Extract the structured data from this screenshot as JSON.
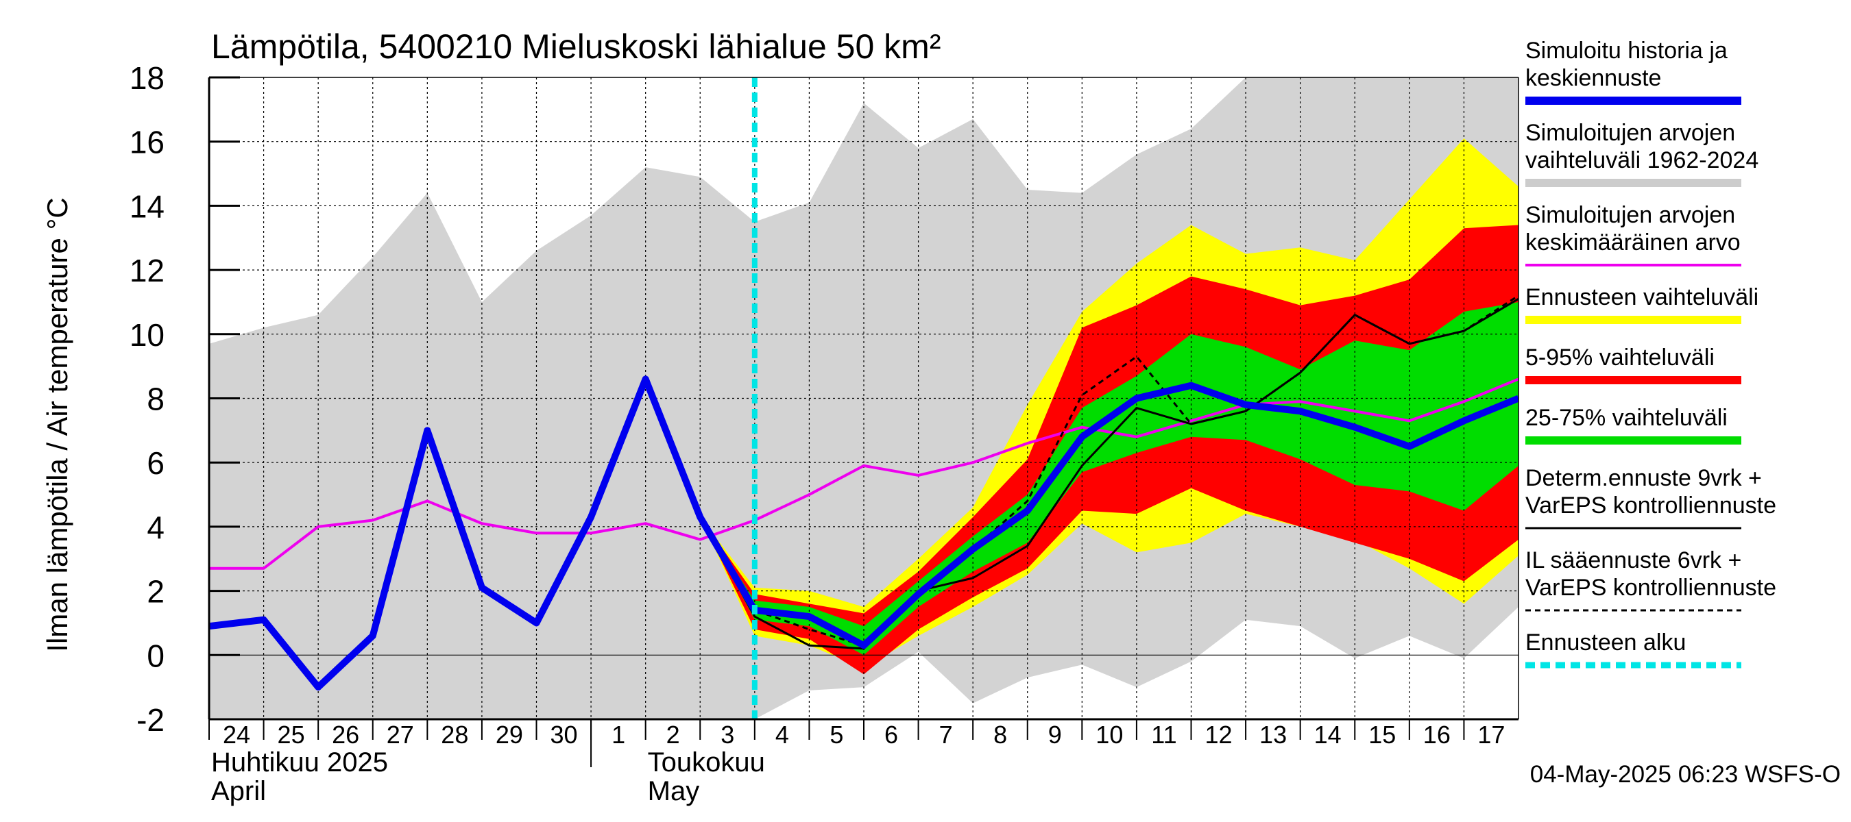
{
  "chart_data": {
    "type": "area",
    "title": "Lämpötila, 5400210 Mieluskoski lähialue 50 km²",
    "ylabel": "Ilman lämpötila / Air temperature   °C",
    "ylim": [
      -2,
      18
    ],
    "yticks": [
      -2,
      0,
      2,
      4,
      6,
      8,
      10,
      12,
      14,
      16,
      18
    ],
    "xlim": [
      0,
      24
    ],
    "x_tick_labels": [
      "24",
      "25",
      "26",
      "27",
      "28",
      "29",
      "30",
      "1",
      "2",
      "3",
      "4",
      "5",
      "6",
      "7",
      "8",
      "9",
      "10",
      "11",
      "12",
      "13",
      "14",
      "15",
      "16",
      "17"
    ],
    "x_tick_positions": [
      0,
      1,
      2,
      3,
      4,
      5,
      6,
      7,
      8,
      9,
      10,
      11,
      12,
      13,
      14,
      15,
      16,
      17,
      18,
      19,
      20,
      21,
      22,
      23
    ],
    "month_labels": [
      {
        "line1": "Huhtikuu  2025",
        "line2": "April",
        "x": 0
      },
      {
        "line1": "Toukokuu",
        "line2": "May",
        "x": 8
      }
    ],
    "month_divider_x": 7,
    "grid": true,
    "forecast_start_x": 10,
    "legend_position": "right",
    "legend": [
      {
        "label": "Simuloitu historia ja keskiennuste",
        "lines": [
          "Simuloitu historia ja",
          "keskiennuste"
        ],
        "color": "#0000ee",
        "style": "thick"
      },
      {
        "label": "Simuloitujen arvojen vaihteluväli 1962-2024",
        "lines": [
          "Simuloitujen arvojen",
          "vaihteluväli 1962-2024"
        ],
        "color": "#cccccc",
        "style": "thick"
      },
      {
        "label": "Simuloitujen arvojen keskimääräinen arvo",
        "lines": [
          "Simuloitujen arvojen",
          "keskimääräinen arvo"
        ],
        "color": "#ee00ee",
        "style": "medium"
      },
      {
        "label": "Ennusteen vaihteluväli",
        "lines": [
          "Ennusteen vaihteluväli"
        ],
        "color": "#ffff00",
        "style": "thick"
      },
      {
        "label": "5-95% vaihteluväli",
        "lines": [
          "5-95% vaihteluväli"
        ],
        "color": "#ff0000",
        "style": "thick"
      },
      {
        "label": "25-75% vaihteluväli",
        "lines": [
          "25-75% vaihteluväli"
        ],
        "color": "#00dd00",
        "style": "thick"
      },
      {
        "label": "Determ.ennuste 9vrk + VarEPS kontrolliennuste",
        "lines": [
          "Determ.ennuste 9vrk +",
          "VarEPS kontrolliennuste"
        ],
        "color": "#000000",
        "style": "thin"
      },
      {
        "label": "IL sääennuste 6vrk + VarEPS kontrolliennuste",
        "lines": [
          "IL sääennuste 6vrk  +",
          "  VarEPS kontrolliennuste"
        ],
        "color": "#000000",
        "style": "dashed"
      },
      {
        "label": "Ennusteen alku",
        "lines": [
          "Ennusteen alku"
        ],
        "color": "#00e5e5",
        "style": "dotted"
      }
    ],
    "series": [
      {
        "name": "Simuloitujen arvojen vaihteluväli 1962-2024",
        "kind": "band",
        "color": "#d3d3d3",
        "x": [
          0,
          1,
          2,
          3,
          4,
          5,
          6,
          7,
          8,
          9,
          10,
          11,
          12,
          13,
          14,
          15,
          16,
          17,
          18,
          19,
          20,
          21,
          22,
          23,
          24
        ],
        "upper": [
          9.7,
          10.2,
          10.6,
          12.4,
          14.4,
          11.0,
          12.6,
          13.7,
          15.2,
          14.9,
          13.5,
          14.1,
          17.2,
          15.8,
          16.7,
          14.5,
          14.4,
          15.6,
          16.4,
          18.0,
          18.0,
          18.0,
          18.0,
          18.0,
          18.0
        ],
        "lower": [
          -2.0,
          -2.0,
          -2.0,
          -2.0,
          -2.0,
          -2.0,
          -2.0,
          -2.0,
          -2.0,
          -2.0,
          -2.0,
          -1.1,
          -1.0,
          0.1,
          -1.5,
          -0.7,
          -0.3,
          -1.0,
          -0.2,
          1.1,
          0.9,
          -0.1,
          0.6,
          -0.1,
          1.5
        ]
      },
      {
        "name": "Ennusteen vaihteluväli",
        "kind": "band",
        "color": "#ffff00",
        "x": [
          9,
          10,
          11,
          12,
          13,
          14,
          15,
          16,
          17,
          18,
          19,
          20,
          21,
          22,
          23,
          24
        ],
        "upper": [
          4.3,
          2.1,
          2.0,
          1.5,
          3.0,
          4.6,
          7.8,
          10.7,
          12.2,
          13.4,
          12.5,
          12.7,
          12.3,
          14.2,
          16.1,
          14.6
        ],
        "lower": [
          4.3,
          0.6,
          0.3,
          -0.4,
          0.6,
          1.5,
          2.5,
          4.1,
          3.2,
          3.5,
          4.4,
          4.0,
          3.6,
          2.7,
          1.6,
          3.1
        ]
      },
      {
        "name": "5-95% vaihteluväli",
        "kind": "band",
        "color": "#ff0000",
        "x": [
          9,
          10,
          11,
          12,
          13,
          14,
          15,
          16,
          17,
          18,
          19,
          20,
          21,
          22,
          23,
          24
        ],
        "upper": [
          4.3,
          1.9,
          1.6,
          1.3,
          2.6,
          4.3,
          6.1,
          10.2,
          10.9,
          11.8,
          11.4,
          10.9,
          11.2,
          11.7,
          13.3,
          13.4
        ],
        "lower": [
          4.3,
          0.8,
          0.5,
          -0.6,
          0.8,
          1.8,
          2.7,
          4.5,
          4.4,
          5.2,
          4.5,
          4.0,
          3.5,
          3.0,
          2.3,
          3.6
        ]
      },
      {
        "name": "25-75% vaihteluväli",
        "kind": "band",
        "color": "#00dd00",
        "x": [
          9,
          10,
          11,
          12,
          13,
          14,
          15,
          16,
          17,
          18,
          19,
          20,
          21,
          22,
          23,
          24
        ],
        "upper": [
          4.3,
          1.7,
          1.5,
          0.9,
          2.3,
          3.7,
          5.0,
          7.7,
          8.7,
          10.0,
          9.6,
          8.9,
          9.8,
          9.5,
          10.7,
          11.0
        ],
        "lower": [
          4.3,
          1.1,
          0.9,
          0.0,
          1.5,
          2.6,
          3.5,
          5.7,
          6.3,
          6.8,
          6.7,
          6.1,
          5.3,
          5.1,
          4.5,
          5.9
        ]
      },
      {
        "name": "Simuloitujen arvojen keskimääräinen arvo",
        "kind": "line",
        "color": "#ee00ee",
        "x": [
          0,
          1,
          2,
          3,
          4,
          5,
          6,
          7,
          8,
          9,
          10,
          11,
          12,
          13,
          14,
          15,
          16,
          17,
          18,
          19,
          20,
          21,
          22,
          23,
          24
        ],
        "y": [
          2.7,
          2.7,
          4.0,
          4.2,
          4.8,
          4.1,
          3.8,
          3.8,
          4.1,
          3.6,
          4.2,
          5.0,
          5.9,
          5.6,
          6.0,
          6.6,
          7.1,
          6.8,
          7.3,
          7.8,
          7.9,
          7.6,
          7.3,
          7.9,
          8.6
        ]
      },
      {
        "name": "Determ.ennuste 9vrk + VarEPS kontrolliennuste",
        "kind": "line",
        "color": "#000000",
        "x": [
          8,
          9,
          10,
          11,
          12,
          13,
          14,
          15,
          16,
          17,
          18,
          19,
          20,
          21,
          22,
          23,
          24
        ],
        "y": [
          8.6,
          4.3,
          1.2,
          0.3,
          0.2,
          2.0,
          2.4,
          3.4,
          5.9,
          7.7,
          7.2,
          7.6,
          8.8,
          10.6,
          9.7,
          10.1,
          11.1
        ]
      },
      {
        "name": "IL sääennuste 6vrk + VarEPS kontrolliennuste",
        "kind": "dashed",
        "color": "#000000",
        "x": [
          8,
          9,
          10,
          11,
          12,
          13,
          14,
          15,
          16,
          17,
          18,
          19,
          20,
          21,
          22,
          23,
          24
        ],
        "y": [
          8.6,
          4.3,
          1.4,
          0.8,
          0.3,
          2.0,
          3.3,
          4.8,
          8.1,
          9.3,
          7.2,
          7.6,
          8.8,
          10.6,
          9.7,
          10.1,
          11.2
        ]
      },
      {
        "name": "Simuloitu historia ja keskiennuste",
        "kind": "line",
        "color": "#0000ee",
        "x": [
          0,
          1,
          2,
          3,
          4,
          5,
          6,
          7,
          8,
          9,
          10,
          11,
          12,
          13,
          14,
          15,
          16,
          17,
          18,
          19,
          20,
          21,
          22,
          23,
          24
        ],
        "y": [
          0.9,
          1.1,
          -1.0,
          0.6,
          7.0,
          2.1,
          1.0,
          4.3,
          8.6,
          4.3,
          1.4,
          1.2,
          0.3,
          1.9,
          3.3,
          4.5,
          6.8,
          8.0,
          8.4,
          7.8,
          7.6,
          7.1,
          6.5,
          7.3,
          8.0
        ]
      }
    ]
  },
  "footer": {
    "timestamp": "04-May-2025 06:23 WSFS-O"
  }
}
